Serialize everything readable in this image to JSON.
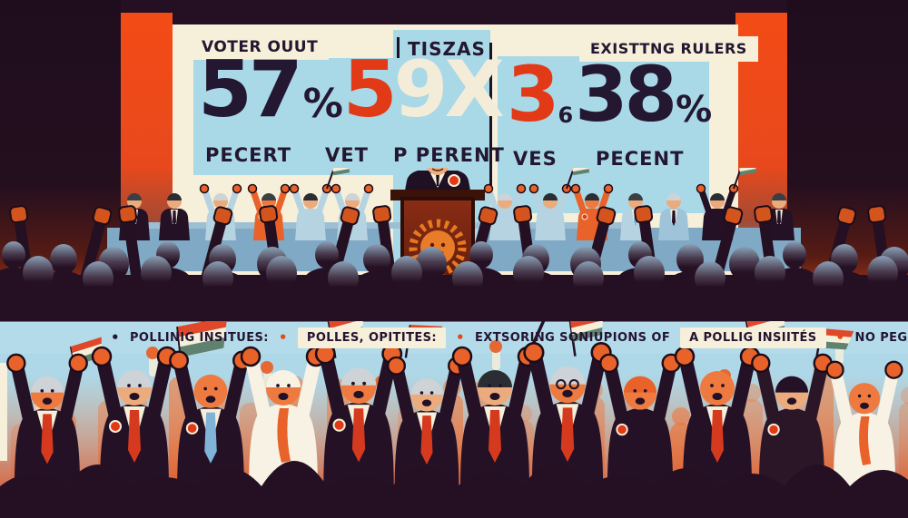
{
  "billboard": {
    "left": {
      "label": "VOTER OUUT",
      "value_dark": "57",
      "percent_sign": "%",
      "value_red": "5",
      "value_cream": "9X",
      "sub1": "PECERT",
      "sub2": "VET",
      "sub3": "P PERENT"
    },
    "center": {
      "label": "TISZAS"
    },
    "right": {
      "label": "EXISTTNG RULERS",
      "value_red": "3",
      "value_small": "6",
      "value_dark": "38",
      "percent_sign": "%",
      "sub1": "VES",
      "sub2": "PECENT"
    }
  },
  "ticker": {
    "bullet_glyph": "•",
    "items": [
      {
        "text": "POLLINIG INSITUES:",
        "boxed": false,
        "bullet": "dark"
      },
      {
        "text": "POLLES, OPITITES:",
        "boxed": true,
        "bullet": "orange"
      },
      {
        "text": "EXTSORING SONIUPIONS OF",
        "boxed": false,
        "bullet": "orange"
      },
      {
        "text": "A POLLIG INSIITÉS",
        "boxed": true,
        "bullet": "none"
      },
      {
        "text": "NO PEGENT SUPPORTTS:",
        "boxed": false,
        "bullet": "orange"
      }
    ]
  },
  "colors": {
    "dark_plum": "#241022",
    "accent_red": "#e23917",
    "orange": "#e8622a",
    "cream": "#f6efd9",
    "panel_blue": "#a9d8e7",
    "sky_blue": "#b3dbea",
    "steel_blue": "#7fa9c4",
    "navy_text": "#231731",
    "flag_green": "#5f8270"
  }
}
